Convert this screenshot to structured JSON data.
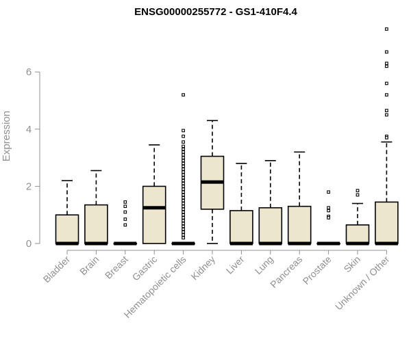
{
  "chart_data": {
    "type": "box",
    "title": "ENSG00000255772 - GS1-410F4.4",
    "ylabel": "Expression",
    "xlabel": "",
    "ylim": [
      0,
      7.5
    ],
    "yticks": [
      0,
      2,
      4,
      6
    ],
    "grid": false,
    "box_fill": "#ede6cf",
    "outlier_color": "#000000",
    "axis_color": "#909090",
    "categories": [
      "Bladder",
      "Brain",
      "Breast",
      "Gastric",
      "Hematopoietic cells",
      "Kidney",
      "Liver",
      "Lung",
      "Pancreas",
      "Prostate",
      "Skin",
      "Unknown / Other"
    ],
    "series": [
      {
        "category": "Bladder",
        "whisker_low": 0,
        "q1": 0,
        "median": 0,
        "q3": 1.0,
        "whisker_high": 2.2,
        "outliers": []
      },
      {
        "category": "Brain",
        "whisker_low": 0,
        "q1": 0,
        "median": 0,
        "q3": 1.35,
        "whisker_high": 2.55,
        "outliers": []
      },
      {
        "category": "Breast",
        "whisker_low": 0,
        "q1": 0,
        "median": 0,
        "q3": 0,
        "whisker_high": 0,
        "outliers": [
          1.45,
          1.3,
          1.1,
          0.85,
          0.65
        ]
      },
      {
        "category": "Gastric",
        "whisker_low": 0,
        "q1": 0,
        "median": 1.25,
        "q3": 2.0,
        "whisker_high": 3.45,
        "outliers": []
      },
      {
        "category": "Hematopoietic cells",
        "whisker_low": 0,
        "q1": 0,
        "median": 0,
        "q3": 0,
        "whisker_high": 0,
        "outliers": [
          5.2,
          3.95,
          3.75,
          3.55,
          3.4,
          3.3,
          3.2,
          3.1,
          3.0,
          2.9,
          2.8,
          2.7,
          2.6,
          2.5,
          2.4,
          2.3,
          2.2,
          2.1,
          2.0,
          1.9,
          1.8,
          1.7,
          1.6,
          1.5,
          1.4,
          1.3,
          1.2,
          1.1,
          1.0,
          0.9,
          0.8,
          0.7,
          0.6,
          0.5,
          0.4,
          0.3,
          0.2
        ]
      },
      {
        "category": "Kidney",
        "whisker_low": 0,
        "q1": 1.2,
        "median": 2.15,
        "q3": 3.05,
        "whisker_high": 4.3,
        "outliers": []
      },
      {
        "category": "Liver",
        "whisker_low": 0,
        "q1": 0,
        "median": 0,
        "q3": 1.15,
        "whisker_high": 2.8,
        "outliers": []
      },
      {
        "category": "Lung",
        "whisker_low": 0,
        "q1": 0,
        "median": 0,
        "q3": 1.25,
        "whisker_high": 2.9,
        "outliers": []
      },
      {
        "category": "Pancreas",
        "whisker_low": 0,
        "q1": 0,
        "median": 0,
        "q3": 1.3,
        "whisker_high": 3.2,
        "outliers": []
      },
      {
        "category": "Prostate",
        "whisker_low": 0,
        "q1": 0,
        "median": 0,
        "q3": 0,
        "whisker_high": 0,
        "outliers": [
          1.8,
          1.25,
          1.15,
          0.95,
          0.9
        ]
      },
      {
        "category": "Skin",
        "whisker_low": 0,
        "q1": 0,
        "median": 0,
        "q3": 0.65,
        "whisker_high": 1.4,
        "outliers": [
          1.85,
          1.7
        ]
      },
      {
        "category": "Unknown / Other",
        "whisker_low": 0,
        "q1": 0,
        "median": 0,
        "q3": 1.45,
        "whisker_high": 3.55,
        "outliers": [
          7.5,
          6.7,
          6.3,
          6.2,
          5.6,
          5.2,
          4.65,
          4.5,
          3.75,
          3.7
        ]
      }
    ]
  }
}
